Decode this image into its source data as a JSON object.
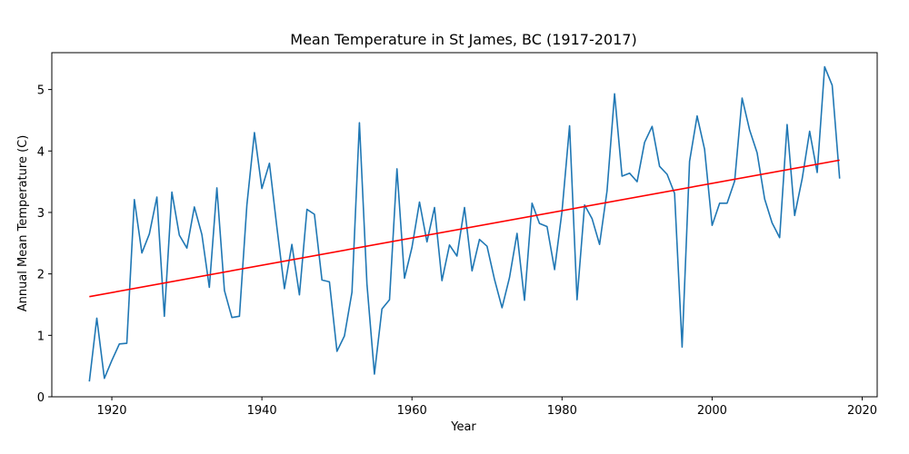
{
  "chart_data": {
    "type": "line",
    "title": "Mean Temperature in St James, BC (1917-2017)",
    "xlabel": "Year",
    "ylabel": "Annual Mean Temperature (C)",
    "xlim": [
      1912,
      2022
    ],
    "ylim": [
      0,
      5.6
    ],
    "xticks": [
      1920,
      1940,
      1960,
      1980,
      2000,
      2020
    ],
    "yticks": [
      0,
      1,
      2,
      3,
      4,
      5
    ],
    "grid": false,
    "series": [
      {
        "kind": "line",
        "color": "#1f77b4",
        "x": [
          1917,
          1918,
          1919,
          1920,
          1921,
          1922,
          1923,
          1924,
          1925,
          1926,
          1927,
          1928,
          1929,
          1930,
          1931,
          1932,
          1933,
          1934,
          1935,
          1936,
          1937,
          1938,
          1939,
          1940,
          1941,
          1942,
          1943,
          1944,
          1945,
          1946,
          1947,
          1948,
          1949,
          1950,
          1951,
          1952,
          1953,
          1954,
          1955,
          1956,
          1957,
          1958,
          1959,
          1960,
          1961,
          1962,
          1963,
          1964,
          1965,
          1966,
          1967,
          1968,
          1969,
          1970,
          1971,
          1972,
          1973,
          1974,
          1975,
          1976,
          1977,
          1978,
          1979,
          1980,
          1981,
          1982,
          1983,
          1984,
          1985,
          1986,
          1987,
          1988,
          1989,
          1990,
          1991,
          1992,
          1993,
          1994,
          1995,
          1996,
          1997,
          1998,
          1999,
          2000,
          2001,
          2002,
          2003,
          2004,
          2005,
          2006,
          2007,
          2008,
          2009,
          2010,
          2011,
          2012,
          2013,
          2014,
          2015,
          2016,
          2017
        ],
        "y": [
          0.25,
          1.28,
          0.3,
          0.59,
          0.86,
          0.87,
          3.21,
          2.34,
          2.65,
          3.25,
          1.31,
          3.33,
          2.63,
          2.42,
          3.09,
          2.64,
          1.78,
          3.4,
          1.73,
          1.29,
          1.31,
          3.12,
          4.3,
          3.39,
          3.8,
          2.76,
          1.76,
          2.48,
          1.66,
          3.05,
          2.97,
          1.9,
          1.87,
          0.74,
          0.99,
          1.7,
          4.46,
          1.83,
          0.37,
          1.43,
          1.58,
          3.71,
          1.93,
          2.43,
          3.17,
          2.52,
          3.08,
          1.89,
          2.47,
          2.29,
          3.08,
          2.05,
          2.56,
          2.45,
          1.91,
          1.45,
          1.94,
          2.66,
          1.57,
          3.15,
          2.82,
          2.77,
          2.07,
          3.02,
          4.41,
          1.58,
          3.12,
          2.9,
          2.48,
          3.35,
          4.93,
          3.59,
          3.64,
          3.5,
          4.14,
          4.4,
          3.75,
          3.62,
          3.31,
          0.81,
          3.83,
          4.57,
          4.03,
          2.79,
          3.15,
          3.15,
          3.51,
          4.86,
          4.34,
          3.97,
          3.22,
          2.83,
          2.59,
          4.43,
          2.95,
          3.55,
          4.32,
          3.65,
          5.37,
          5.07,
          3.55
        ]
      },
      {
        "kind": "trend",
        "color": "#ff0000",
        "x": [
          1917,
          2017
        ],
        "y": [
          1.63,
          3.85
        ]
      }
    ]
  }
}
